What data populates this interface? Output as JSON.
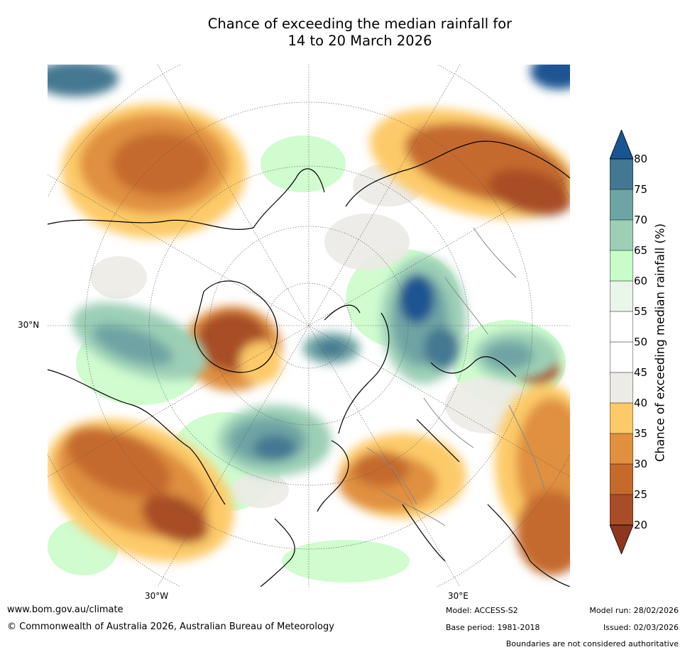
{
  "title_line1": "Chance of exceeding the median rainfall for",
  "title_line2": "14 to 20 March 2026",
  "map": {
    "lat_label": "30°N",
    "lon_labels": {
      "west": "30°W",
      "east": "30°E"
    }
  },
  "colorbar": {
    "label": "Chance of exceeding median rainfall (%)",
    "ticks": [
      "80",
      "75",
      "70",
      "65",
      "60",
      "55",
      "50",
      "45",
      "40",
      "35",
      "30",
      "25",
      "20"
    ],
    "colors": {
      "over": "#1a5592",
      "b75_80": "#447892",
      "b70_75": "#6fa4a4",
      "b65_70": "#9ccfb6",
      "b60_65": "#c8fcc8",
      "b55_60": "#e9f6e9",
      "b50_55": "#ffffff",
      "b45_50": "#ffffff",
      "b40_45": "#ecebe6",
      "b35_40": "#fdca69",
      "b30_35": "#e0903f",
      "b25_30": "#c56a2d",
      "b20_25": "#a94d28",
      "under": "#8f361e"
    }
  },
  "footer": {
    "website": "www.bom.gov.au/climate",
    "copyright": "© Commonwealth of Australia 2026, Australian Bureau of Meteorology",
    "model": "Model: ACCESS-S2",
    "base_period": "Base period: 1981-2018",
    "model_run": "Model run: 28/02/2026",
    "issued": "Issued: 02/03/2026",
    "disclaimer": "Boundaries are not considered authoritative"
  }
}
